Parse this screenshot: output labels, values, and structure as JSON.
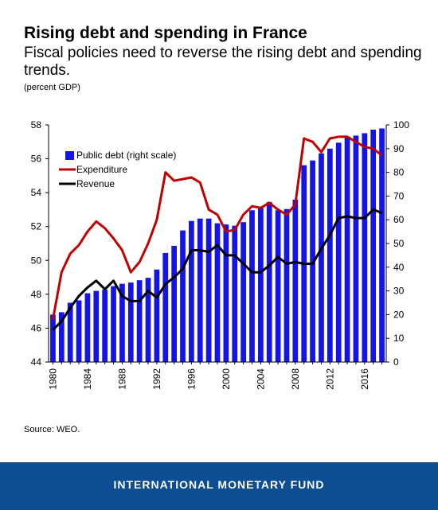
{
  "header": {
    "title": "Rising debt and spending in France",
    "subtitle": "Fiscal policies need to reverse the rising debt and spending trends.",
    "unit": "(percent GDP)"
  },
  "source": "Source: WEO.",
  "footer": {
    "org": "INTERNATIONAL MONETARY FUND"
  },
  "colors": {
    "debt": "#1414e6",
    "expenditure": "#c00000",
    "revenue": "#000000",
    "footer_bg": "#0d4d93"
  },
  "chart_data": {
    "type": "bar+line",
    "x": [
      1980,
      1981,
      1982,
      1983,
      1984,
      1985,
      1986,
      1987,
      1988,
      1989,
      1990,
      1991,
      1992,
      1993,
      1994,
      1995,
      1996,
      1997,
      1998,
      1999,
      2000,
      2001,
      2002,
      2003,
      2004,
      2005,
      2006,
      2007,
      2008,
      2009,
      2010,
      2011,
      2012,
      2013,
      2014,
      2015,
      2016,
      2017,
      2018
    ],
    "x_tick_labels": [
      "1980",
      "1984",
      "1988",
      "1992",
      "1996",
      "2000",
      "2004",
      "2008",
      "2012",
      "2016"
    ],
    "y_left": {
      "min": 44,
      "max": 58,
      "ticks": [
        "44",
        "46",
        "48",
        "50",
        "52",
        "54",
        "56",
        "58"
      ]
    },
    "y_right": {
      "min": 0,
      "max": 100,
      "ticks": [
        "0",
        "10",
        "20",
        "30",
        "40",
        "50",
        "60",
        "70",
        "80",
        "90",
        "100"
      ]
    },
    "series": [
      {
        "name": "Public debt (right scale)",
        "type": "bar",
        "axis": "right",
        "values": [
          20,
          21,
          25,
          26,
          29,
          30,
          30.5,
          32,
          33,
          33.5,
          34.5,
          35.5,
          39,
          46,
          49,
          55.5,
          59.5,
          60.5,
          60.5,
          58.5,
          58,
          57.5,
          59,
          64,
          65.5,
          67.5,
          64,
          64.5,
          68.5,
          83,
          85,
          88,
          90,
          92.5,
          95,
          95.5,
          96.5,
          98,
          98.5
        ]
      },
      {
        "name": "Expenditure",
        "type": "line",
        "axis": "left",
        "values": [
          46.5,
          49.3,
          50.4,
          50.9,
          51.7,
          52.3,
          51.9,
          51.3,
          50.6,
          49.3,
          49.9,
          51.0,
          52.4,
          55.2,
          54.7,
          54.8,
          54.9,
          54.6,
          53.0,
          52.7,
          51.7,
          51.8,
          52.7,
          53.2,
          53.1,
          53.4,
          53.0,
          52.7,
          53.3,
          57.2,
          57.0,
          56.4,
          57.2,
          57.3,
          57.3,
          57.0,
          56.7,
          56.6,
          56.2
        ]
      },
      {
        "name": "Revenue",
        "type": "line",
        "axis": "left",
        "values": [
          45.9,
          46.4,
          47.2,
          47.9,
          48.4,
          48.8,
          48.3,
          48.8,
          47.9,
          47.6,
          47.6,
          48.2,
          47.8,
          48.6,
          49.0,
          49.5,
          50.6,
          50.6,
          50.5,
          50.9,
          50.3,
          50.3,
          49.8,
          49.3,
          49.3,
          49.7,
          50.2,
          49.8,
          49.9,
          49.8,
          49.8,
          50.7,
          51.5,
          52.5,
          52.6,
          52.5,
          52.5,
          53.0,
          52.8
        ]
      }
    ],
    "legend": {
      "placement": "top-left"
    },
    "grid": false
  }
}
